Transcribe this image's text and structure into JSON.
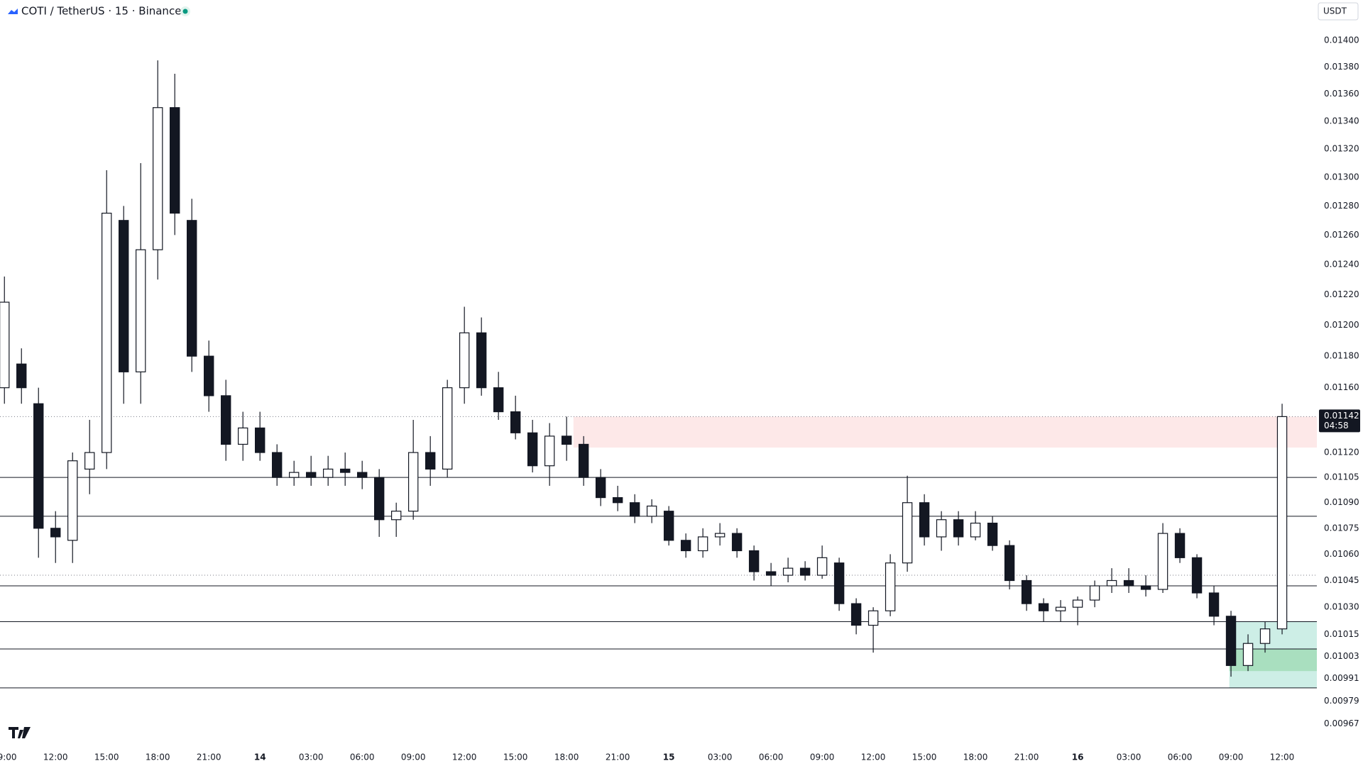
{
  "chart_data": {
    "type": "candlestick",
    "title": "COTI / TetherUS · 15 · Binance",
    "currency": "USDT",
    "log_scale": true,
    "ylim": [
      0.00955,
      0.01431
    ],
    "xlim": [
      -0.26,
      77.04
    ],
    "yticks": [
      {
        "value": 0.014,
        "label": "0.01400"
      },
      {
        "value": 0.0138,
        "label": "0.01380"
      },
      {
        "value": 0.0136,
        "label": "0.01360"
      },
      {
        "value": 0.0134,
        "label": "0.01340"
      },
      {
        "value": 0.0132,
        "label": "0.01320"
      },
      {
        "value": 0.013,
        "label": "0.01300"
      },
      {
        "value": 0.0128,
        "label": "0.01280"
      },
      {
        "value": 0.0126,
        "label": "0.01260"
      },
      {
        "value": 0.0124,
        "label": "0.01240"
      },
      {
        "value": 0.0122,
        "label": "0.01220"
      },
      {
        "value": 0.012,
        "label": "0.01200"
      },
      {
        "value": 0.0118,
        "label": "0.01180"
      },
      {
        "value": 0.0116,
        "label": "0.01160"
      },
      {
        "value": 0.0112,
        "label": "0.01120"
      },
      {
        "value": 0.01105,
        "label": "0.01105"
      },
      {
        "value": 0.0109,
        "label": "0.01090"
      },
      {
        "value": 0.01075,
        "label": "0.01075"
      },
      {
        "value": 0.0106,
        "label": "0.01060"
      },
      {
        "value": 0.01045,
        "label": "0.01045"
      },
      {
        "value": 0.0103,
        "label": "0.01030"
      },
      {
        "value": 0.01015,
        "label": "0.01015"
      },
      {
        "value": 0.01003,
        "label": "0.01003"
      },
      {
        "value": 0.00991,
        "label": "0.00991"
      },
      {
        "value": 0.00979,
        "label": "0.00979"
      },
      {
        "value": 0.00967,
        "label": "0.00967"
      }
    ],
    "xticks": [
      {
        "value": 0,
        "label": "09:00"
      },
      {
        "value": 3,
        "label": "12:00"
      },
      {
        "value": 6,
        "label": "15:00"
      },
      {
        "value": 9,
        "label": "18:00"
      },
      {
        "value": 12,
        "label": "21:00"
      },
      {
        "value": 15,
        "label": "14"
      },
      {
        "value": 18,
        "label": "03:00"
      },
      {
        "value": 21,
        "label": "06:00"
      },
      {
        "value": 24,
        "label": "09:00"
      },
      {
        "value": 27,
        "label": "12:00"
      },
      {
        "value": 30,
        "label": "15:00"
      },
      {
        "value": 33,
        "label": "18:00"
      },
      {
        "value": 36,
        "label": "21:00"
      },
      {
        "value": 39,
        "label": "15"
      },
      {
        "value": 42,
        "label": "03:00"
      },
      {
        "value": 45,
        "label": "06:00"
      },
      {
        "value": 48,
        "label": "09:00"
      },
      {
        "value": 51,
        "label": "12:00"
      },
      {
        "value": 54,
        "label": "15:00"
      },
      {
        "value": 57,
        "label": "18:00"
      },
      {
        "value": 60,
        "label": "21:00"
      },
      {
        "value": 63,
        "label": "16"
      },
      {
        "value": 66,
        "label": "03:00"
      },
      {
        "value": 69,
        "label": "06:00"
      },
      {
        "value": 72,
        "label": "09:00"
      },
      {
        "value": 75,
        "label": "12:00"
      }
    ],
    "candles": {
      "x": [
        0,
        1,
        2,
        3,
        4,
        5,
        6,
        7,
        8,
        9,
        10,
        11,
        12,
        13,
        14,
        15,
        16,
        17,
        18,
        19,
        20,
        21,
        22,
        23,
        24,
        25,
        26,
        27,
        28,
        29,
        30,
        31,
        32,
        33,
        34,
        35,
        36,
        37,
        38,
        39,
        40,
        41,
        42,
        43,
        44,
        45,
        46,
        47,
        48,
        49,
        50,
        51,
        52,
        53,
        54,
        55,
        56,
        57,
        58,
        59,
        60,
        61,
        62,
        63,
        64,
        65,
        66,
        67,
        68,
        69,
        70,
        71,
        72,
        73,
        74,
        75
      ],
      "open": [
        0.0116,
        0.01175,
        0.0115,
        0.01075,
        0.01068,
        0.0111,
        0.0112,
        0.0127,
        0.0117,
        0.0125,
        0.0135,
        0.0127,
        0.0118,
        0.01155,
        0.01125,
        0.01135,
        0.0112,
        0.01105,
        0.01108,
        0.01105,
        0.0111,
        0.01108,
        0.01105,
        0.0108,
        0.01085,
        0.0112,
        0.0111,
        0.0116,
        0.01195,
        0.0116,
        0.01145,
        0.01132,
        0.01112,
        0.0113,
        0.01125,
        0.01105,
        0.01093,
        0.0109,
        0.01082,
        0.01085,
        0.01068,
        0.01062,
        0.0107,
        0.01072,
        0.01062,
        0.0105,
        0.01048,
        0.01052,
        0.01048,
        0.01055,
        0.01032,
        0.0102,
        0.01028,
        0.01055,
        0.0109,
        0.0107,
        0.0108,
        0.0107,
        0.01078,
        0.01065,
        0.01045,
        0.01032,
        0.01028,
        0.0103,
        0.01034,
        0.01042,
        0.01045,
        0.01042,
        0.0104,
        0.01072,
        0.01058,
        0.01038,
        0.01025,
        0.00998,
        0.0101,
        0.01018
      ],
      "high": [
        0.01232,
        0.01185,
        0.0116,
        0.01085,
        0.0112,
        0.0114,
        0.01305,
        0.0128,
        0.0131,
        0.01385,
        0.01375,
        0.01285,
        0.0119,
        0.01165,
        0.01145,
        0.01145,
        0.01125,
        0.01115,
        0.01118,
        0.01118,
        0.0112,
        0.01115,
        0.0111,
        0.0109,
        0.0114,
        0.0113,
        0.01165,
        0.01212,
        0.01205,
        0.0117,
        0.01155,
        0.0114,
        0.01138,
        0.01142,
        0.0113,
        0.0111,
        0.011,
        0.01095,
        0.01092,
        0.01088,
        0.01072,
        0.01075,
        0.01078,
        0.01075,
        0.01065,
        0.01055,
        0.01058,
        0.01056,
        0.01065,
        0.01058,
        0.01035,
        0.0103,
        0.0106,
        0.01106,
        0.01095,
        0.01085,
        0.01085,
        0.01085,
        0.01082,
        0.01068,
        0.01048,
        0.01035,
        0.01034,
        0.01036,
        0.01045,
        0.01052,
        0.01052,
        0.01048,
        0.01078,
        0.01075,
        0.0106,
        0.01042,
        0.01028,
        0.01015,
        0.01022,
        0.0115
      ],
      "low": [
        0.0115,
        0.0115,
        0.01058,
        0.01055,
        0.01055,
        0.01095,
        0.0111,
        0.0115,
        0.0115,
        0.0123,
        0.0126,
        0.0117,
        0.01145,
        0.01115,
        0.01115,
        0.01115,
        0.011,
        0.011,
        0.011,
        0.011,
        0.011,
        0.01098,
        0.0107,
        0.0107,
        0.0108,
        0.011,
        0.01105,
        0.0115,
        0.01155,
        0.0114,
        0.01128,
        0.01108,
        0.011,
        0.01115,
        0.011,
        0.01088,
        0.01085,
        0.01078,
        0.01078,
        0.01065,
        0.01058,
        0.01058,
        0.01065,
        0.01058,
        0.01045,
        0.01042,
        0.01044,
        0.01045,
        0.01046,
        0.01028,
        0.01015,
        0.01005,
        0.01025,
        0.0105,
        0.01065,
        0.01062,
        0.01065,
        0.01068,
        0.01062,
        0.0104,
        0.01028,
        0.01022,
        0.01022,
        0.0102,
        0.0103,
        0.01038,
        0.01038,
        0.01036,
        0.01038,
        0.01055,
        0.01035,
        0.0102,
        0.00992,
        0.00995,
        0.01005,
        0.01015
      ],
      "close": [
        0.01215,
        0.0116,
        0.01075,
        0.0107,
        0.01115,
        0.0112,
        0.01275,
        0.0117,
        0.0125,
        0.0135,
        0.01275,
        0.0118,
        0.01155,
        0.01125,
        0.01135,
        0.0112,
        0.01105,
        0.01108,
        0.01105,
        0.0111,
        0.01108,
        0.01105,
        0.0108,
        0.01085,
        0.0112,
        0.0111,
        0.0116,
        0.01195,
        0.0116,
        0.01145,
        0.01132,
        0.01112,
        0.0113,
        0.01125,
        0.01105,
        0.01093,
        0.0109,
        0.01082,
        0.01088,
        0.01068,
        0.01062,
        0.0107,
        0.01072,
        0.01062,
        0.0105,
        0.01048,
        0.01052,
        0.01048,
        0.01058,
        0.01032,
        0.0102,
        0.01028,
        0.01055,
        0.0109,
        0.0107,
        0.0108,
        0.0107,
        0.01078,
        0.01065,
        0.01045,
        0.01032,
        0.01028,
        0.0103,
        0.01034,
        0.01042,
        0.01045,
        0.01042,
        0.0104,
        0.01072,
        0.01058,
        0.01038,
        0.01025,
        0.00998,
        0.0101,
        0.01018,
        0.01142
      ]
    },
    "levels": [
      0.01105,
      0.01082,
      0.01042,
      0.01022,
      0.01007,
      0.00986
    ],
    "dotted_levels": [
      0.01048
    ],
    "zones": [
      {
        "start": 33.4,
        "low": 0.01123,
        "high": 0.01142,
        "color": "#fde8e8"
      },
      {
        "start": 71.9,
        "low": 0.00986,
        "high": 0.01022,
        "color": "#cdeee6"
      },
      {
        "start": 71.9,
        "low": 0.00995,
        "high": 0.01007,
        "color": "#a9dfbf"
      }
    ],
    "current_price": 0.01142,
    "countdown": "04:58"
  }
}
